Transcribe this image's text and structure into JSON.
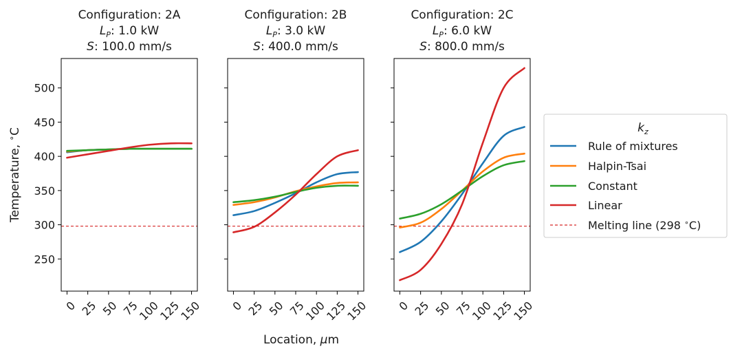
{
  "chart_data": [
    {
      "type": "line",
      "title": [
        "Configuration: 2A",
        "L_P: 1.0 kW",
        "S: 100.0 mm/s"
      ],
      "title_lines": [
        {
          "main": "Configuration: 2A"
        },
        {
          "var": "L",
          "sub": "P",
          "rest": ": 1.0 kW"
        },
        {
          "var": "S",
          "rest": ": 100.0 mm/s"
        }
      ],
      "x_ticks": [
        "0",
        "25",
        "50",
        "75",
        "100",
        "125",
        "150"
      ],
      "series": [
        {
          "name": "Rule of mixtures",
          "color": "#1f77b4",
          "x": [
            0,
            25,
            50,
            75,
            100,
            125,
            150
          ],
          "y": [
            406,
            409,
            410,
            411,
            411,
            411,
            411
          ]
        },
        {
          "name": "Halpin-Tsai",
          "color": "#ff7f0e",
          "x": [
            0,
            25,
            50,
            75,
            100,
            125,
            150
          ],
          "y": [
            407,
            409,
            410,
            411,
            411,
            411,
            411
          ]
        },
        {
          "name": "Constant",
          "color": "#2ca02c",
          "x": [
            0,
            25,
            50,
            75,
            100,
            125,
            150
          ],
          "y": [
            408,
            409,
            410,
            411,
            411,
            411,
            411
          ]
        },
        {
          "name": "Linear",
          "color": "#d62728",
          "x": [
            0,
            25,
            50,
            75,
            100,
            125,
            150
          ],
          "y": [
            398,
            403,
            408,
            413,
            417,
            419,
            419
          ]
        }
      ],
      "melting_line": 298
    },
    {
      "type": "line",
      "title": [
        "Configuration: 2B",
        "L_P: 3.0 kW",
        "S: 400.0 mm/s"
      ],
      "title_lines": [
        {
          "main": "Configuration: 2B"
        },
        {
          "var": "L",
          "sub": "P",
          "rest": ": 3.0 kW"
        },
        {
          "var": "S",
          "rest": ": 400.0 mm/s"
        }
      ],
      "x_ticks": [
        "0",
        "25",
        "50",
        "75",
        "100",
        "125",
        "150"
      ],
      "series": [
        {
          "name": "Rule of mixtures",
          "color": "#1f77b4",
          "x": [
            0,
            25,
            50,
            75,
            100,
            125,
            150
          ],
          "y": [
            314,
            320,
            332,
            346,
            362,
            374,
            377
          ]
        },
        {
          "name": "Halpin-Tsai",
          "color": "#ff7f0e",
          "x": [
            0,
            25,
            50,
            75,
            100,
            125,
            150
          ],
          "y": [
            329,
            333,
            340,
            349,
            356,
            361,
            362
          ]
        },
        {
          "name": "Constant",
          "color": "#2ca02c",
          "x": [
            0,
            25,
            50,
            75,
            100,
            125,
            150
          ],
          "y": [
            333,
            336,
            341,
            348,
            354,
            357,
            357
          ]
        },
        {
          "name": "Linear",
          "color": "#d62728",
          "x": [
            0,
            25,
            50,
            75,
            100,
            125,
            150
          ],
          "y": [
            289,
            297,
            318,
            344,
            374,
            400,
            409
          ]
        }
      ],
      "melting_line": 298
    },
    {
      "type": "line",
      "title": [
        "Configuration: 2C",
        "L_P: 6.0 kW",
        "S: 800.0 mm/s"
      ],
      "title_lines": [
        {
          "main": "Configuration: 2C"
        },
        {
          "var": "L",
          "sub": "P",
          "rest": ": 6.0 kW"
        },
        {
          "var": "S",
          "rest": ": 800.0 mm/s"
        }
      ],
      "x_ticks": [
        "0",
        "25",
        "50",
        "75",
        "100",
        "125",
        "150"
      ],
      "series": [
        {
          "name": "Rule of mixtures",
          "color": "#1f77b4",
          "x": [
            0,
            25,
            50,
            75,
            100,
            125,
            150
          ],
          "y": [
            260,
            275,
            305,
            345,
            390,
            430,
            443
          ]
        },
        {
          "name": "Halpin-Tsai",
          "color": "#ff7f0e",
          "x": [
            0,
            25,
            50,
            75,
            100,
            125,
            150
          ],
          "y": [
            296,
            303,
            323,
            350,
            378,
            398,
            404
          ]
        },
        {
          "name": "Constant",
          "color": "#2ca02c",
          "x": [
            0,
            25,
            50,
            75,
            100,
            125,
            150
          ],
          "y": [
            309,
            316,
            330,
            350,
            371,
            387,
            393
          ]
        },
        {
          "name": "Linear",
          "color": "#d62728",
          "x": [
            0,
            25,
            50,
            75,
            100,
            125,
            150
          ],
          "y": [
            219,
            234,
            272,
            330,
            420,
            500,
            529
          ]
        }
      ],
      "melting_line": 298
    }
  ],
  "axes": {
    "ylabel": "Temperature, °C",
    "ylabel_parts": {
      "text": "Temperature,  ",
      "deg": "∘",
      "unit": "C"
    },
    "xlabel": "Location, μm",
    "xlabel_parts": {
      "text": "Location, ",
      "mu": "μ",
      "unit": "m"
    },
    "y_ticks": [
      250,
      300,
      350,
      400,
      450,
      500
    ],
    "ylim": [
      203,
      543
    ],
    "xlim": [
      -7,
      157
    ],
    "grid": false
  },
  "legend": {
    "placement": "right",
    "title": "k_z",
    "title_parts": {
      "var": "k",
      "sub": "z"
    },
    "entries": [
      {
        "label": "Rule of mixtures",
        "color": "#1f77b4",
        "style": "solid"
      },
      {
        "label": "Halpin-Tsai",
        "color": "#ff7f0e",
        "style": "solid"
      },
      {
        "label": "Constant",
        "color": "#2ca02c",
        "style": "solid"
      },
      {
        "label": "Linear",
        "color": "#d62728",
        "style": "solid"
      },
      {
        "label": "Melting line (298 °C)",
        "label_text": "Melting line (298 ",
        "label_deg": "∘",
        "label_unit": "C)",
        "color": "#d62728",
        "style": "dashed"
      }
    ]
  }
}
